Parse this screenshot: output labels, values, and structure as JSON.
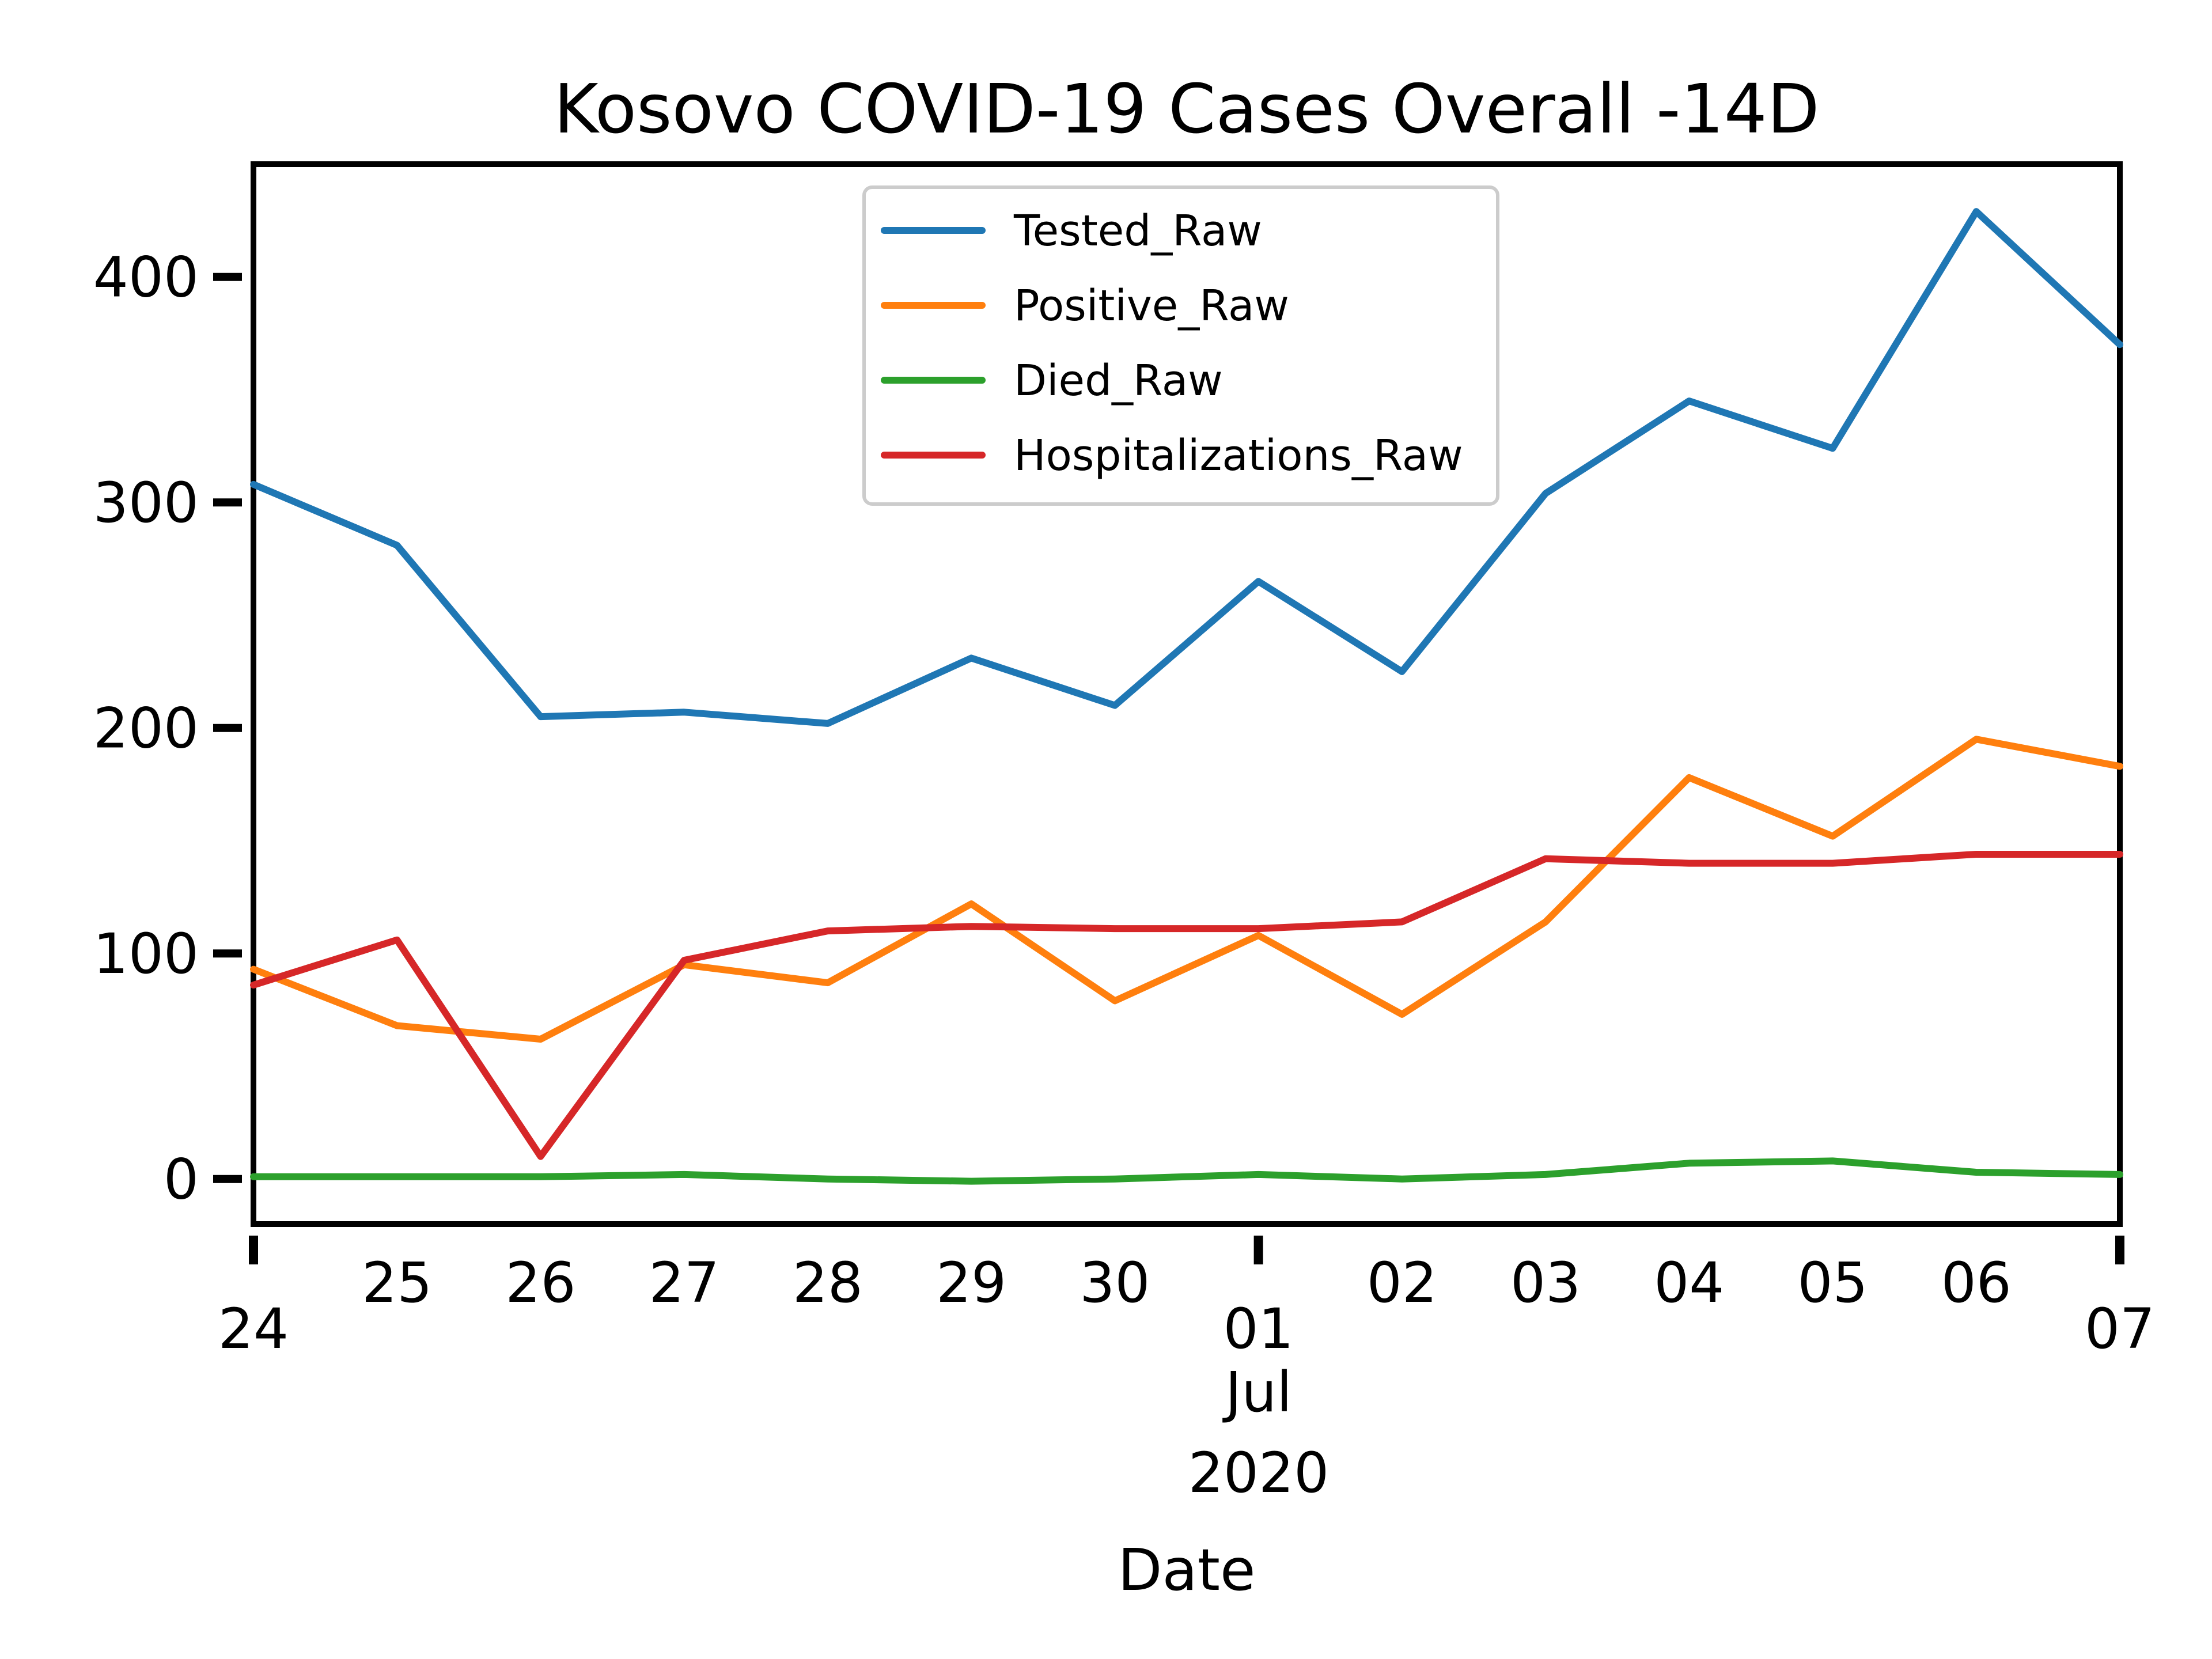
{
  "chart_data": {
    "type": "line",
    "title": "Kosovo COVID-19 Cases Overall -14D",
    "xlabel": "Date",
    "ylabel": "",
    "x": [
      "2020-06-24",
      "2020-06-25",
      "2020-06-26",
      "2020-06-27",
      "2020-06-28",
      "2020-06-29",
      "2020-06-30",
      "2020-07-01",
      "2020-07-02",
      "2020-07-03",
      "2020-07-04",
      "2020-07-05",
      "2020-07-06",
      "2020-07-07"
    ],
    "xticks": [
      {
        "date": "2020-06-24",
        "label": "24"
      },
      {
        "date": "2020-06-25",
        "label": "25"
      },
      {
        "date": "2020-06-26",
        "label": "26"
      },
      {
        "date": "2020-06-27",
        "label": "27"
      },
      {
        "date": "2020-06-28",
        "label": "28"
      },
      {
        "date": "2020-06-29",
        "label": "29"
      },
      {
        "date": "2020-06-30",
        "label": "30"
      },
      {
        "date": "2020-07-01",
        "label": "01"
      },
      {
        "date": "2020-07-02",
        "label": "02"
      },
      {
        "date": "2020-07-03",
        "label": "03"
      },
      {
        "date": "2020-07-04",
        "label": "04"
      },
      {
        "date": "2020-07-05",
        "label": "05"
      },
      {
        "date": "2020-07-06",
        "label": "06"
      },
      {
        "date": "2020-07-07",
        "label": "07"
      }
    ],
    "xtick_sublabels": [
      "Jul",
      "2020"
    ],
    "ylim": [
      -20,
      450
    ],
    "yticks": [
      0,
      100,
      200,
      300,
      400
    ],
    "grid": false,
    "legend_position": "top-center",
    "series": [
      {
        "name": "Tested_Raw",
        "color": "#1f77b4",
        "values": [
          308,
          281,
          205,
          207,
          202,
          231,
          210,
          265,
          225,
          304,
          345,
          324,
          429,
          370
        ]
      },
      {
        "name": "Positive_Raw",
        "color": "#ff7f0e",
        "values": [
          93,
          68,
          62,
          95,
          87,
          122,
          79,
          108,
          73,
          114,
          178,
          152,
          195,
          183
        ]
      },
      {
        "name": "Died_Raw",
        "color": "#2ca02c",
        "values": [
          1,
          1,
          1,
          2,
          0,
          -1,
          0,
          2,
          0,
          2,
          7,
          8,
          3,
          2
        ]
      },
      {
        "name": "Hospitalizations_Raw",
        "color": "#d62728",
        "values": [
          86,
          106,
          10,
          97,
          110,
          112,
          111,
          111,
          114,
          142,
          140,
          140,
          144,
          144
        ]
      }
    ]
  }
}
